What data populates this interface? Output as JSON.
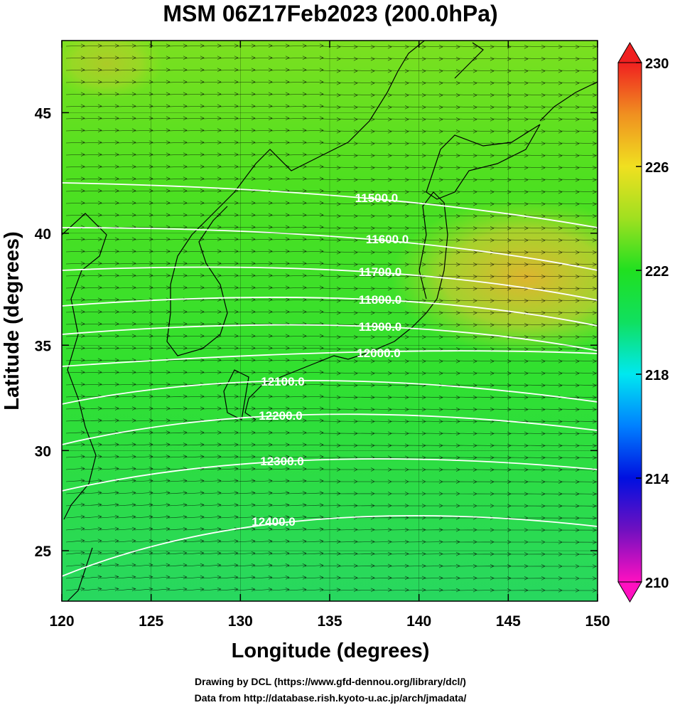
{
  "title": "MSM 06Z17Feb2023 (200.0hPa)",
  "map": {
    "projection": "mercator",
    "xlabel": "Longitude (degrees)",
    "ylabel": "Latitude  (degrees)",
    "xlim": [
      120,
      150
    ],
    "ylim": [
      22.4,
      47.8
    ],
    "xticks": [
      120,
      125,
      130,
      135,
      140,
      145,
      150
    ],
    "yticks": [
      25,
      30,
      35,
      40,
      45
    ],
    "contours": [
      {
        "value": 11500,
        "label": "11500.0"
      },
      {
        "value": 11600,
        "label": "11600.0"
      },
      {
        "value": 11700,
        "label": "11700.0"
      },
      {
        "value": 11800,
        "label": "11800.0"
      },
      {
        "value": 11900,
        "label": "11900.0"
      },
      {
        "value": 12000,
        "label": "12000.0"
      },
      {
        "value": 12100,
        "label": "12100.0"
      },
      {
        "value": 12200,
        "label": "12200.0"
      },
      {
        "value": 12300,
        "label": "12300.0"
      },
      {
        "value": 12400,
        "label": "12400.0"
      }
    ],
    "colorbar": {
      "lim": [
        210,
        230
      ],
      "ticks": [
        210,
        214,
        218,
        222,
        226,
        230
      ],
      "colors": [
        "#ff10c0",
        "#7010c0",
        "#0010e0",
        "#0080ff",
        "#00e8f0",
        "#10e060",
        "#20e020",
        "#a0e020",
        "#f0e020",
        "#f09020",
        "#f02020"
      ]
    }
  },
  "credits": [
    "Drawing by DCL (https://www.gfd-dennou.org/library/dcl/)",
    "Data from http://database.rish.kyoto-u.ac.jp/arch/jmadata/"
  ]
}
